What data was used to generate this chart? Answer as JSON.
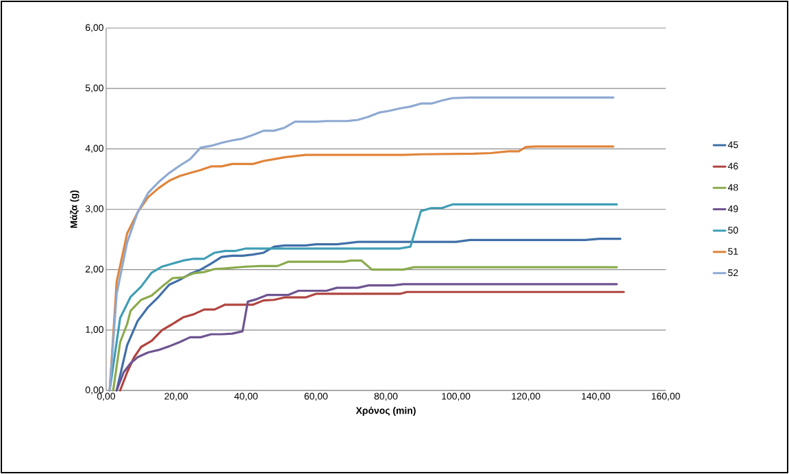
{
  "chart_data": {
    "type": "line",
    "xlabel": "Χρόνος (min)",
    "ylabel": "Μάζα (g)",
    "xlim": [
      0,
      160
    ],
    "ylim": [
      0,
      6
    ],
    "xticks": [
      {
        "value": 0,
        "label": "0,00"
      },
      {
        "value": 20,
        "label": "20,00"
      },
      {
        "value": 40,
        "label": "40,00"
      },
      {
        "value": 60,
        "label": "60,00"
      },
      {
        "value": 80,
        "label": "80,00"
      },
      {
        "value": 100,
        "label": "100,00"
      },
      {
        "value": 120,
        "label": "120,00"
      },
      {
        "value": 140,
        "label": "140,00"
      },
      {
        "value": 160,
        "label": "160,00"
      }
    ],
    "yticks": [
      {
        "value": 0,
        "label": "0,00"
      },
      {
        "value": 1,
        "label": "1,00"
      },
      {
        "value": 2,
        "label": "2,00"
      },
      {
        "value": 3,
        "label": "3,00"
      },
      {
        "value": 4,
        "label": "4,00"
      },
      {
        "value": 5,
        "label": "5,00"
      },
      {
        "value": 6,
        "label": "6,00"
      }
    ],
    "grid": "y",
    "legend": "right",
    "marker": "none",
    "line_style": "solid",
    "series": [
      {
        "name": "45",
        "color": "#3f6fa8",
        "x": [
          3,
          6,
          9,
          12,
          15,
          18,
          21,
          24,
          27,
          30,
          33,
          36,
          39,
          42,
          45,
          48,
          51,
          54,
          57,
          60,
          66,
          72,
          80,
          90,
          100,
          104,
          120,
          137,
          141,
          147
        ],
        "values": [
          0,
          0.75,
          1.15,
          1.38,
          1.55,
          1.75,
          1.83,
          1.93,
          2.0,
          2.1,
          2.21,
          2.23,
          2.23,
          2.25,
          2.28,
          2.38,
          2.4,
          2.4,
          2.4,
          2.42,
          2.42,
          2.46,
          2.46,
          2.46,
          2.46,
          2.49,
          2.49,
          2.49,
          2.51,
          2.51
        ]
      },
      {
        "name": "46",
        "color": "#b04440",
        "x": [
          4,
          6,
          8,
          10,
          13,
          16,
          19,
          22,
          25,
          28,
          31,
          34,
          37,
          42,
          45,
          48,
          51,
          57,
          60,
          70,
          80,
          84,
          86,
          100,
          148
        ],
        "values": [
          0,
          0.3,
          0.55,
          0.72,
          0.82,
          1.0,
          1.1,
          1.21,
          1.26,
          1.34,
          1.34,
          1.42,
          1.42,
          1.42,
          1.49,
          1.5,
          1.54,
          1.54,
          1.6,
          1.6,
          1.6,
          1.6,
          1.63,
          1.63,
          1.63
        ]
      },
      {
        "name": "48",
        "color": "#8aaa4c",
        "x": [
          2,
          4,
          6,
          7,
          10,
          13,
          16,
          19,
          22,
          25,
          28,
          31,
          34,
          40,
          44,
          49,
          52,
          60,
          68,
          70,
          73,
          76,
          82,
          85,
          88,
          100,
          146
        ],
        "values": [
          0,
          0.8,
          1.1,
          1.32,
          1.5,
          1.57,
          1.72,
          1.86,
          1.87,
          1.94,
          1.96,
          2.01,
          2.02,
          2.05,
          2.06,
          2.06,
          2.13,
          2.13,
          2.13,
          2.15,
          2.15,
          2.0,
          2.0,
          2.0,
          2.04,
          2.04,
          2.04
        ]
      },
      {
        "name": "49",
        "color": "#6e5491",
        "x": [
          3,
          5,
          7,
          9,
          12,
          15,
          18,
          21,
          24,
          27,
          30,
          33,
          36,
          39,
          40.5,
          43,
          46,
          49,
          52,
          55,
          60,
          63,
          66,
          72,
          75,
          82,
          85,
          100,
          146
        ],
        "values": [
          0,
          0.3,
          0.45,
          0.55,
          0.63,
          0.67,
          0.73,
          0.8,
          0.88,
          0.88,
          0.93,
          0.93,
          0.94,
          0.98,
          1.47,
          1.51,
          1.58,
          1.58,
          1.58,
          1.65,
          1.65,
          1.65,
          1.7,
          1.7,
          1.74,
          1.74,
          1.76,
          1.76,
          1.76
        ]
      },
      {
        "name": "50",
        "color": "#3f9db5",
        "x": [
          1,
          4,
          7,
          10,
          13,
          16,
          19,
          22,
          25,
          28,
          31,
          34,
          37,
          40,
          46,
          60,
          70,
          80,
          84,
          87,
          90,
          93,
          96,
          99,
          120,
          146
        ],
        "values": [
          0,
          1.2,
          1.55,
          1.72,
          1.95,
          2.05,
          2.1,
          2.15,
          2.18,
          2.18,
          2.28,
          2.31,
          2.31,
          2.35,
          2.35,
          2.35,
          2.35,
          2.35,
          2.35,
          2.38,
          2.97,
          3.02,
          3.02,
          3.08,
          3.08,
          3.08
        ]
      },
      {
        "name": "51",
        "color": "#e0843a",
        "x": [
          1,
          3,
          6,
          9,
          12,
          15,
          18,
          21,
          24,
          27,
          30,
          33,
          36,
          42,
          45,
          48,
          51,
          57,
          80,
          85,
          90,
          105,
          110,
          115,
          118,
          120,
          123,
          145
        ],
        "values": [
          0,
          1.8,
          2.6,
          2.95,
          3.2,
          3.35,
          3.47,
          3.55,
          3.6,
          3.65,
          3.71,
          3.71,
          3.75,
          3.75,
          3.8,
          3.83,
          3.86,
          3.9,
          3.9,
          3.9,
          3.91,
          3.92,
          3.93,
          3.96,
          3.96,
          4.03,
          4.04,
          4.04
        ]
      },
      {
        "name": "52",
        "color": "#8ea9d2",
        "x": [
          1,
          3,
          6,
          9,
          12,
          15,
          18,
          21,
          24,
          27,
          30,
          33,
          36,
          39,
          42,
          45,
          48,
          51,
          54,
          60,
          63,
          69,
          72,
          75,
          78,
          81,
          84,
          87,
          90,
          93,
          96,
          99,
          104,
          145
        ],
        "values": [
          0,
          1.6,
          2.45,
          2.95,
          3.27,
          3.45,
          3.6,
          3.72,
          3.83,
          4.02,
          4.05,
          4.1,
          4.14,
          4.17,
          4.23,
          4.3,
          4.3,
          4.35,
          4.45,
          4.45,
          4.46,
          4.46,
          4.48,
          4.53,
          4.6,
          4.63,
          4.67,
          4.7,
          4.75,
          4.75,
          4.8,
          4.84,
          4.85,
          4.85
        ]
      }
    ]
  }
}
